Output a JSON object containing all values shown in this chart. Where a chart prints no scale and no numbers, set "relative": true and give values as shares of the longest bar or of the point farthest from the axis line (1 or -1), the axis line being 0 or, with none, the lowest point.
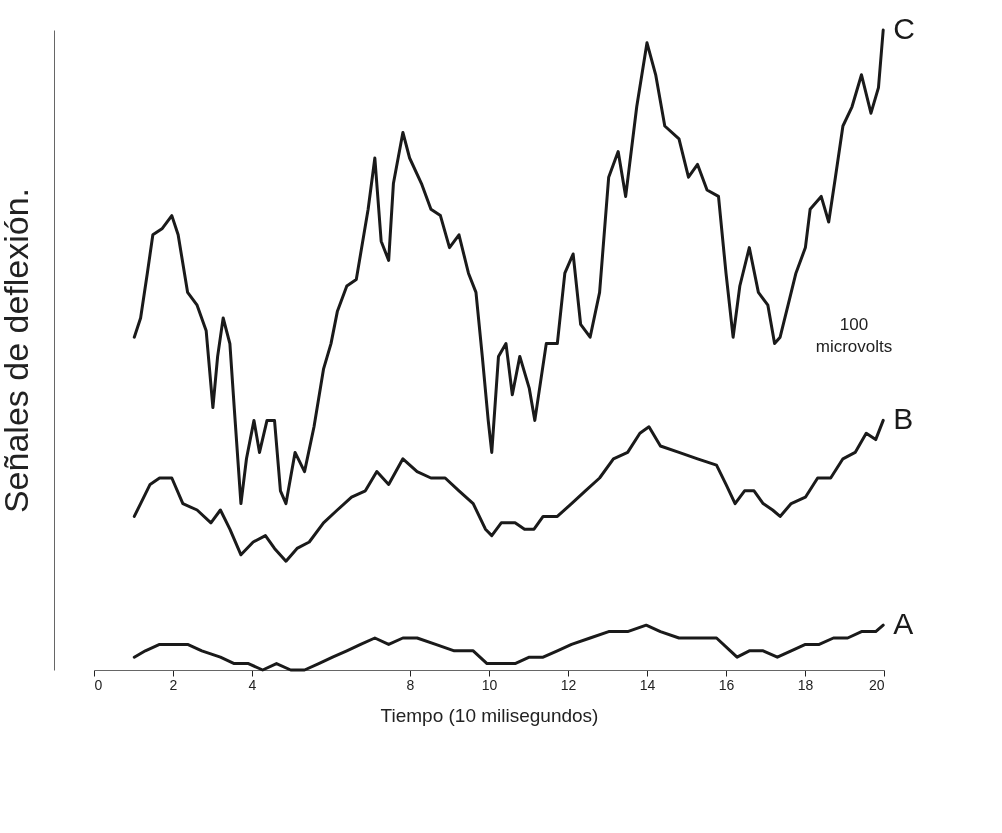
{
  "chart_data": {
    "type": "line",
    "xlabel": "Tiempo (10 milisegundos)",
    "ylabel": "Señales de deflexión.",
    "relative": true,
    "tick_labels": "x",
    "xlim": [
      0,
      20
    ],
    "xticks": [
      0,
      2,
      4,
      8,
      10,
      12,
      14,
      16,
      18,
      20
    ],
    "annotations": [
      "100 microvolts"
    ],
    "series": [
      {
        "name": "A",
        "color": "#1a1a1a",
        "x": [
          1.02,
          1.3,
          1.66,
          2.01,
          2.37,
          2.73,
          3.2,
          3.55,
          3.91,
          4.27,
          4.62,
          4.98,
          5.33,
          5.69,
          6.04,
          6.4,
          6.75,
          7.11,
          7.46,
          7.82,
          8.18,
          8.65,
          9.12,
          9.6,
          9.95,
          10.31,
          10.66,
          11.02,
          11.37,
          11.73,
          12.09,
          12.56,
          13.03,
          13.51,
          13.98,
          14.34,
          14.81,
          15.28,
          15.76,
          16.11,
          16.28,
          16.59,
          16.94,
          17.3,
          17.65,
          18.01,
          18.36,
          18.72,
          19.08,
          19.43,
          19.79,
          19.98
        ],
        "values": [
          0.02,
          0.03,
          0.04,
          0.04,
          0.04,
          0.03,
          0.02,
          0.01,
          0.01,
          0.0,
          0.01,
          0.0,
          0.0,
          0.01,
          0.02,
          0.03,
          0.04,
          0.05,
          0.04,
          0.05,
          0.05,
          0.04,
          0.03,
          0.03,
          0.01,
          0.01,
          0.01,
          0.02,
          0.02,
          0.03,
          0.04,
          0.05,
          0.06,
          0.06,
          0.07,
          0.06,
          0.05,
          0.05,
          0.05,
          0.03,
          0.02,
          0.03,
          0.03,
          0.02,
          0.03,
          0.04,
          0.04,
          0.05,
          0.05,
          0.06,
          0.06,
          0.07
        ]
      },
      {
        "name": "B",
        "color": "#1a1a1a",
        "x": [
          1.02,
          1.18,
          1.42,
          1.66,
          1.97,
          2.25,
          2.61,
          2.96,
          3.2,
          3.44,
          3.72,
          4.03,
          4.34,
          4.57,
          4.86,
          5.14,
          5.45,
          5.81,
          6.16,
          6.52,
          6.87,
          7.16,
          7.46,
          7.82,
          8.18,
          8.53,
          8.89,
          9.24,
          9.6,
          9.91,
          10.07,
          10.31,
          10.66,
          10.9,
          11.14,
          11.37,
          11.73,
          12.09,
          12.44,
          12.8,
          13.15,
          13.51,
          13.82,
          14.05,
          14.34,
          14.81,
          15.28,
          15.76,
          16.0,
          16.23,
          16.47,
          16.71,
          16.94,
          17.18,
          17.37,
          17.65,
          18.01,
          18.32,
          18.65,
          18.96,
          19.27,
          19.55,
          19.79,
          19.98
        ],
        "values": [
          0.24,
          0.26,
          0.29,
          0.3,
          0.3,
          0.26,
          0.25,
          0.23,
          0.25,
          0.22,
          0.18,
          0.2,
          0.21,
          0.19,
          0.17,
          0.19,
          0.2,
          0.23,
          0.25,
          0.27,
          0.28,
          0.31,
          0.29,
          0.33,
          0.31,
          0.3,
          0.3,
          0.28,
          0.26,
          0.22,
          0.21,
          0.23,
          0.23,
          0.22,
          0.22,
          0.24,
          0.24,
          0.26,
          0.28,
          0.3,
          0.33,
          0.34,
          0.37,
          0.38,
          0.35,
          0.34,
          0.33,
          0.32,
          0.29,
          0.26,
          0.28,
          0.28,
          0.26,
          0.25,
          0.24,
          0.26,
          0.27,
          0.3,
          0.3,
          0.33,
          0.34,
          0.37,
          0.36,
          0.39
        ]
      },
      {
        "name": "C",
        "color": "#1a1a1a",
        "x": [
          1.02,
          1.18,
          1.35,
          1.49,
          1.73,
          1.97,
          2.13,
          2.37,
          2.61,
          2.84,
          3.01,
          3.13,
          3.27,
          3.44,
          3.55,
          3.72,
          3.86,
          4.05,
          4.19,
          4.38,
          4.57,
          4.72,
          4.86,
          5.09,
          5.33,
          5.57,
          5.81,
          6.0,
          6.16,
          6.4,
          6.64,
          6.94,
          7.11,
          7.27,
          7.46,
          7.58,
          7.82,
          7.99,
          8.29,
          8.53,
          8.77,
          9.0,
          9.24,
          9.48,
          9.67,
          9.83,
          9.98,
          10.07,
          10.24,
          10.43,
          10.59,
          10.78,
          11.02,
          11.16,
          11.45,
          11.73,
          11.92,
          12.13,
          12.32,
          12.56,
          12.8,
          13.03,
          13.27,
          13.46,
          13.74,
          14.0,
          14.22,
          14.45,
          14.81,
          15.05,
          15.28,
          15.52,
          15.81,
          16.0,
          16.18,
          16.35,
          16.59,
          16.82,
          17.06,
          17.23,
          17.37,
          17.61,
          17.77,
          18.01,
          18.13,
          18.41,
          18.6,
          18.77,
          18.96,
          19.19,
          19.43,
          19.67,
          19.86,
          19.98
        ],
        "values": [
          0.52,
          0.55,
          0.62,
          0.68,
          0.69,
          0.71,
          0.68,
          0.59,
          0.57,
          0.53,
          0.41,
          0.49,
          0.55,
          0.51,
          0.41,
          0.26,
          0.33,
          0.39,
          0.34,
          0.39,
          0.39,
          0.28,
          0.26,
          0.34,
          0.31,
          0.38,
          0.47,
          0.51,
          0.56,
          0.6,
          0.61,
          0.72,
          0.8,
          0.67,
          0.64,
          0.76,
          0.84,
          0.8,
          0.76,
          0.72,
          0.71,
          0.66,
          0.68,
          0.62,
          0.59,
          0.49,
          0.39,
          0.34,
          0.49,
          0.51,
          0.43,
          0.49,
          0.44,
          0.39,
          0.51,
          0.51,
          0.62,
          0.65,
          0.54,
          0.52,
          0.59,
          0.77,
          0.81,
          0.74,
          0.88,
          0.98,
          0.93,
          0.85,
          0.83,
          0.77,
          0.79,
          0.75,
          0.74,
          0.62,
          0.52,
          0.6,
          0.66,
          0.59,
          0.57,
          0.51,
          0.52,
          0.58,
          0.62,
          0.66,
          0.72,
          0.74,
          0.7,
          0.77,
          0.85,
          0.88,
          0.93,
          0.87,
          0.91,
          1.0
        ]
      }
    ]
  }
}
